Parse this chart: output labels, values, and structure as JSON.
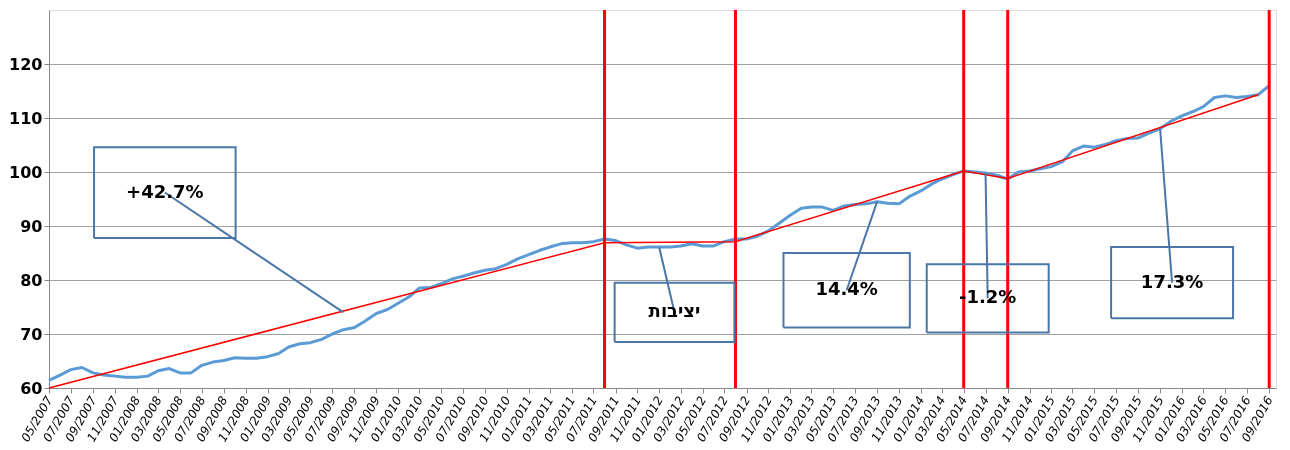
{
  "chart_data": {
    "type": "line",
    "x": [
      "2007-05",
      "2007-06",
      "2007-07",
      "2007-08",
      "2007-09",
      "2007-10",
      "2007-11",
      "2007-12",
      "2008-01",
      "2008-02",
      "2008-03",
      "2008-04",
      "2008-05",
      "2008-06",
      "2008-07",
      "2008-08",
      "2008-09",
      "2008-10",
      "2008-11",
      "2008-12",
      "2009-01",
      "2009-02",
      "2009-03",
      "2009-04",
      "2009-05",
      "2009-06",
      "2009-07",
      "2009-08",
      "2009-09",
      "2009-10",
      "2009-11",
      "2009-12",
      "2010-01",
      "2010-02",
      "2010-03",
      "2010-04",
      "2010-05",
      "2010-06",
      "2010-07",
      "2010-08",
      "2010-09",
      "2010-10",
      "2010-11",
      "2010-12",
      "2011-01",
      "2011-02",
      "2011-03",
      "2011-04",
      "2011-05",
      "2011-06",
      "2011-07",
      "2011-08",
      "2011-09",
      "2011-10",
      "2011-11",
      "2011-12",
      "2012-01",
      "2012-02",
      "2012-03",
      "2012-04",
      "2012-05",
      "2012-06",
      "2012-07",
      "2012-08",
      "2012-09",
      "2012-10",
      "2012-11",
      "2012-12",
      "2013-01",
      "2013-02",
      "2013-03",
      "2013-04",
      "2013-05",
      "2013-06",
      "2013-07",
      "2013-08",
      "2013-09",
      "2013-10",
      "2013-11",
      "2013-12",
      "2014-01",
      "2014-02",
      "2014-03",
      "2014-04",
      "2014-05",
      "2014-06",
      "2014-07",
      "2014-08",
      "2014-09",
      "2014-10",
      "2014-11",
      "2014-12",
      "2015-01",
      "2015-02",
      "2015-03",
      "2015-04",
      "2015-05",
      "2015-06",
      "2015-07",
      "2015-08",
      "2015-09",
      "2015-10",
      "2015-11",
      "2015-12",
      "2016-01",
      "2016-02",
      "2016-03",
      "2016-04",
      "2016-05",
      "2016-06",
      "2016-07",
      "2016-08",
      "2016-09"
    ],
    "series": [
      {
        "color": "#5b9bd5",
        "values": [
          61.4,
          62.4,
          63.4,
          63.8,
          62.8,
          62.4,
          62.2,
          62.0,
          62.0,
          62.2,
          63.2,
          63.6,
          62.8,
          62.8,
          64.2,
          64.8,
          65.1,
          65.6,
          65.5,
          65.5,
          65.8,
          66.4,
          67.6,
          68.2,
          68.4,
          69.0,
          70.0,
          70.8,
          71.2,
          72.4,
          73.8,
          74.5,
          75.7,
          76.9,
          78.5,
          78.6,
          79.3,
          80.2,
          80.7,
          81.3,
          81.8,
          82.1,
          82.9,
          83.9,
          84.7,
          85.5,
          86.1,
          86.7,
          86.9,
          86.9,
          87.1,
          87.6,
          87.3,
          86.5,
          85.9,
          86.1,
          86.1,
          86.1,
          86.3,
          86.7,
          86.3,
          86.3,
          87.1,
          87.6,
          87.6,
          88.1,
          89.1,
          90.5,
          92.0,
          93.3,
          93.5,
          93.5,
          92.9,
          93.7,
          94.0,
          94.1,
          94.5,
          94.2,
          94.1,
          95.5,
          96.5,
          97.8,
          98.7,
          99.5,
          100.2,
          100.0,
          99.8,
          99.4,
          98.7,
          100.0,
          100.2,
          100.6,
          101.0,
          101.9,
          103.9,
          104.8,
          104.6,
          105.1,
          105.8,
          106.2,
          106.3,
          107.2,
          108.0,
          109.4,
          110.4,
          111.2,
          112.1,
          113.8,
          114.1,
          113.8,
          114.0,
          114.3,
          116.0
        ]
      },
      {
        "type": "line",
        "color": "#ff0000",
        "x": [
          "2007-05",
          "2011-08",
          "2012-08",
          "2014-05",
          "2014-09",
          "2016-08"
        ],
        "values": [
          60,
          86.9,
          87.1,
          100.2,
          98.8,
          114.3
        ]
      }
    ],
    "xlim": [
      "2007-05",
      "2016-09-20"
    ],
    "xticks": [
      {
        "value": "2007-05",
        "label": "05/2007"
      },
      {
        "value": "2007-07",
        "label": "07/2007"
      },
      {
        "value": "2007-09",
        "label": "09/2007"
      },
      {
        "value": "2007-11",
        "label": "11/2007"
      },
      {
        "value": "2008-01",
        "label": "01/2008"
      },
      {
        "value": "2008-03",
        "label": "03/2008"
      },
      {
        "value": "2008-05",
        "label": "05/2008"
      },
      {
        "value": "2008-07",
        "label": "07/2008"
      },
      {
        "value": "2008-09",
        "label": "09/2008"
      },
      {
        "value": "2008-11",
        "label": "11/2008"
      },
      {
        "value": "2009-01",
        "label": "01/2009"
      },
      {
        "value": "2009-03",
        "label": "03/2009"
      },
      {
        "value": "2009-05",
        "label": "05/2009"
      },
      {
        "value": "2009-07",
        "label": "07/2009"
      },
      {
        "value": "2009-09",
        "label": "09/2009"
      },
      {
        "value": "2009-11",
        "label": "11/2009"
      },
      {
        "value": "2010-01",
        "label": "01/2010"
      },
      {
        "value": "2010-03",
        "label": "03/2010"
      },
      {
        "value": "2010-05",
        "label": "05/2010"
      },
      {
        "value": "2010-07",
        "label": "07/2010"
      },
      {
        "value": "2010-09",
        "label": "09/2010"
      },
      {
        "value": "2010-11",
        "label": "11/2010"
      },
      {
        "value": "2011-01",
        "label": "01/2011"
      },
      {
        "value": "2011-03",
        "label": "03/2011"
      },
      {
        "value": "2011-05",
        "label": "05/2011"
      },
      {
        "value": "2011-07",
        "label": "07/2011"
      },
      {
        "value": "2011-09",
        "label": "09/2011"
      },
      {
        "value": "2011-11",
        "label": "11/2011"
      },
      {
        "value": "2012-01",
        "label": "01/2012"
      },
      {
        "value": "2012-03",
        "label": "03/2012"
      },
      {
        "value": "2012-05",
        "label": "05/2012"
      },
      {
        "value": "2012-07",
        "label": "07/2012"
      },
      {
        "value": "2012-09",
        "label": "09/2012"
      },
      {
        "value": "2012-11",
        "label": "11/2012"
      },
      {
        "value": "2013-01",
        "label": "01/2013"
      },
      {
        "value": "2013-03",
        "label": "03/2013"
      },
      {
        "value": "2013-05",
        "label": "05/2013"
      },
      {
        "value": "2013-07",
        "label": "07/2013"
      },
      {
        "value": "2013-09",
        "label": "09/2013"
      },
      {
        "value": "2013-11",
        "label": "11/2013"
      },
      {
        "value": "2014-01",
        "label": "01/2014"
      },
      {
        "value": "2014-03",
        "label": "03/2014"
      },
      {
        "value": "2014-05",
        "label": "05/2014"
      },
      {
        "value": "2014-07",
        "label": "07/2014"
      },
      {
        "value": "2014-09",
        "label": "09/2014"
      },
      {
        "value": "2014-11",
        "label": "11/2014"
      },
      {
        "value": "2015-01",
        "label": "01/2015"
      },
      {
        "value": "2015-03",
        "label": "03/2015"
      },
      {
        "value": "2015-05",
        "label": "05/2015"
      },
      {
        "value": "2015-07",
        "label": "07/2015"
      },
      {
        "value": "2015-09",
        "label": "09/2015"
      },
      {
        "value": "2015-11",
        "label": "11/2015"
      },
      {
        "value": "2016-01",
        "label": "01/2016"
      },
      {
        "value": "2016-03",
        "label": "03/2016"
      },
      {
        "value": "2016-05",
        "label": "05/2016"
      },
      {
        "value": "2016-07",
        "label": "07/2016"
      },
      {
        "value": "2016-09",
        "label": "09/2016"
      }
    ],
    "ylim": [
      60,
      130
    ],
    "yticks": [
      60,
      70,
      80,
      90,
      100,
      110,
      120
    ],
    "grid": "y",
    "marker": "none",
    "line_style": "solid",
    "ref_lines": [
      {
        "axis": "x",
        "value": "2011-08",
        "color": "#ff0000"
      },
      {
        "axis": "x",
        "value": "2012-08",
        "color": "#ff0000"
      },
      {
        "axis": "x",
        "value": "2014-05",
        "color": "#ff0000"
      },
      {
        "axis": "x",
        "value": "2014-09",
        "color": "#ff0000"
      },
      {
        "axis": "x",
        "value": "2016-09",
        "color": "#ff0000"
      }
    ],
    "annotations": [
      {
        "text": "+42.7%",
        "x": "2009-08",
        "y": 74.0
      },
      {
        "text": "יציבות",
        "x": "2012-01",
        "y": 86.0
      },
      {
        "text": "14.4%",
        "x": "2013-09",
        "y": 94.5
      },
      {
        "text": "-1.2%",
        "x": "2014-07",
        "y": 99.8
      },
      {
        "text": "17.3%",
        "x": "2015-11",
        "y": 108.0
      }
    ]
  }
}
